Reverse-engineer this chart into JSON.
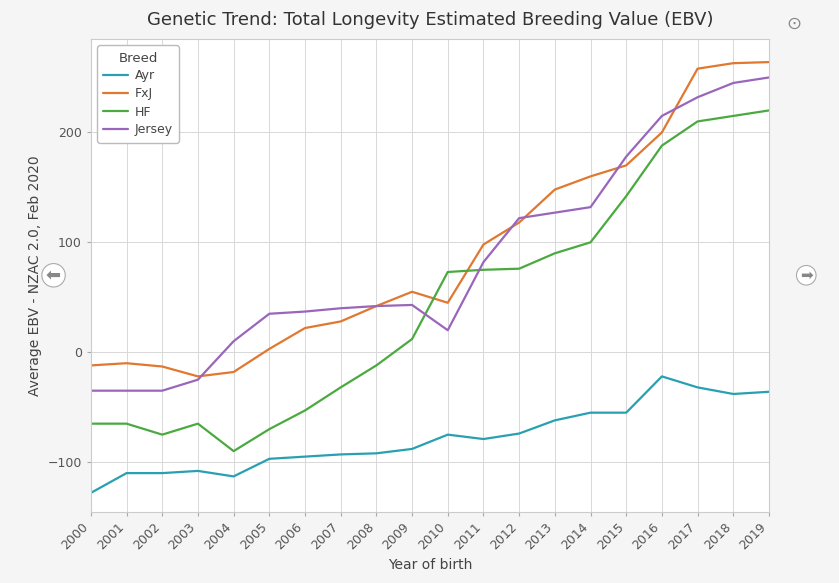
{
  "title": "Genetic Trend: Total Longevity Estimated Breeding Value (EBV)",
  "xlabel": "Year of birth",
  "ylabel": "Average EBV - NZAC 2.0, Feb 2020",
  "years": [
    2000,
    2001,
    2002,
    2003,
    2004,
    2005,
    2006,
    2007,
    2008,
    2009,
    2010,
    2011,
    2012,
    2013,
    2014,
    2015,
    2016,
    2017,
    2018,
    2019
  ],
  "Ayr": [
    -128,
    -110,
    -110,
    -108,
    -113,
    -97,
    -95,
    -93,
    -92,
    -88,
    -75,
    -79,
    -74,
    -62,
    -55,
    -55,
    -22,
    -32,
    -38,
    -36
  ],
  "FxJ": [
    -12,
    -10,
    -13,
    -22,
    -18,
    3,
    22,
    28,
    42,
    55,
    45,
    98,
    118,
    148,
    160,
    170,
    200,
    258,
    263,
    264
  ],
  "HF": [
    -65,
    -65,
    -75,
    -65,
    -90,
    -70,
    -53,
    -32,
    -12,
    12,
    73,
    75,
    76,
    90,
    100,
    142,
    188,
    210,
    215,
    220
  ],
  "Jersey": [
    -35,
    -35,
    -35,
    -25,
    10,
    35,
    37,
    40,
    42,
    43,
    20,
    82,
    122,
    127,
    132,
    178,
    215,
    232,
    245,
    250
  ],
  "colors": {
    "Ayr": "#29a0b1",
    "FxJ": "#e07830",
    "HF": "#4aaa40",
    "Jersey": "#9966bb"
  },
  "ylim": [
    -145,
    285
  ],
  "yticks": [
    -100,
    0,
    100,
    200
  ],
  "background_color": "#f5f5f5",
  "plot_background": "#ffffff",
  "grid_color": "#d8d8d8",
  "title_fontsize": 13,
  "axis_label_fontsize": 10,
  "tick_fontsize": 9,
  "legend_title": "Breed",
  "linewidth": 1.6,
  "left_arrow": "←",
  "right_arrow": "→",
  "circle_arrow": "⊙"
}
